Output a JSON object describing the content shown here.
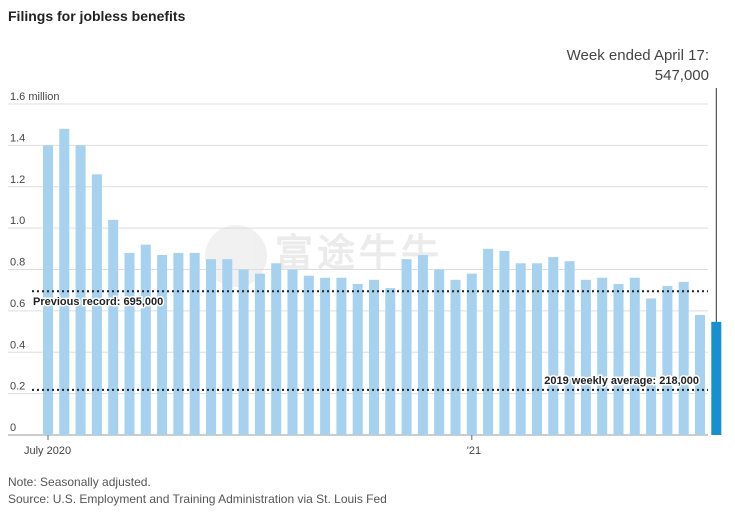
{
  "title": "Filings for jobless benefits",
  "callout": {
    "line1": "Week ended April 17:",
    "line2": "547,000"
  },
  "notes": {
    "note": "Note: Seasonally adjusted.",
    "source": "Source: U.S. Employment and Training Administration via St. Louis Fed"
  },
  "chart_data": {
    "type": "bar",
    "y_ticks": [
      {
        "value": 0,
        "label": "0"
      },
      {
        "value": 0.2,
        "label": "0.2"
      },
      {
        "value": 0.4,
        "label": "0.4"
      },
      {
        "value": 0.6,
        "label": "0.6"
      },
      {
        "value": 0.8,
        "label": "0.8"
      },
      {
        "value": 1.0,
        "label": "1.0"
      },
      {
        "value": 1.2,
        "label": "1.2"
      },
      {
        "value": 1.4,
        "label": "1.4"
      },
      {
        "value": 1.6,
        "label": "1.6 million"
      }
    ],
    "ylim": [
      0,
      1.6
    ],
    "x_ticks": [
      {
        "index": 0,
        "label": "July 2020"
      },
      {
        "index": 26,
        "label": "'21"
      }
    ],
    "values": [
      1.4,
      1.48,
      1.4,
      1.26,
      1.04,
      0.88,
      0.92,
      0.87,
      0.88,
      0.88,
      0.85,
      0.85,
      0.8,
      0.78,
      0.83,
      0.8,
      0.77,
      0.76,
      0.76,
      0.73,
      0.75,
      0.71,
      0.85,
      0.87,
      0.8,
      0.75,
      0.78,
      0.9,
      0.89,
      0.83,
      0.83,
      0.86,
      0.84,
      0.75,
      0.76,
      0.73,
      0.76,
      0.66,
      0.72,
      0.74,
      0.58,
      0.547
    ],
    "highlight_index": 41,
    "bar_color": "#a6d1ef",
    "highlight_color": "#1790d0",
    "reference_lines": [
      {
        "value": 0.695,
        "label": "Previous record: 695,000",
        "label_align": "left"
      },
      {
        "value": 0.218,
        "label": "2019 weekly average: 218,000",
        "label_align": "right"
      }
    ],
    "grid": true
  }
}
